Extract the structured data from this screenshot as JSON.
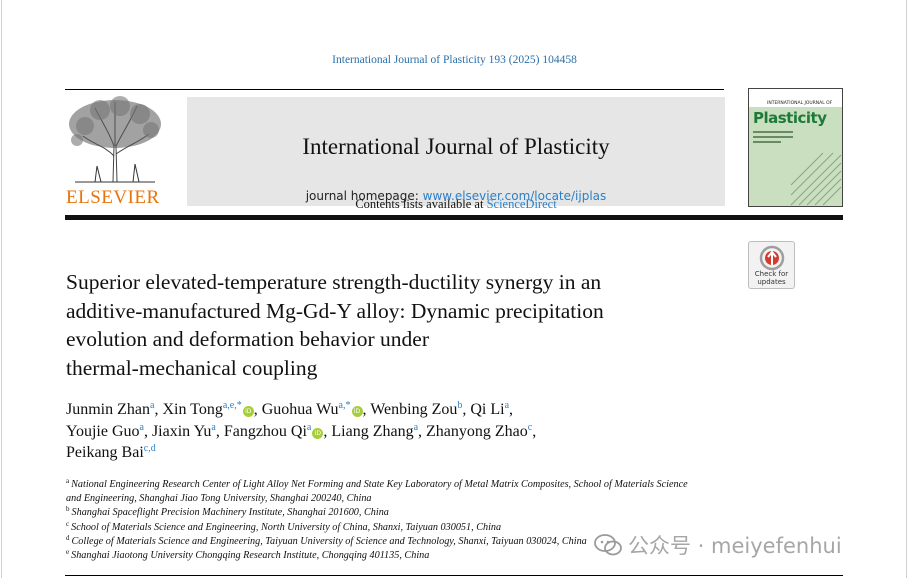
{
  "citation": "International Journal of Plasticity 193 (2025) 104458",
  "publisher": {
    "logo_text": "ELSEVIER"
  },
  "banner": {
    "contents_prefix": "Contents lists available at ",
    "contents_link": "ScienceDirect",
    "journal_title": "International Journal of Plasticity",
    "homepage_prefix": "journal homepage: ",
    "homepage_link": "www.elsevier.com/locate/ijplas"
  },
  "cover": {
    "small_text": "INTERNATIONAL JOURNAL OF",
    "name": "Plasticity"
  },
  "check_updates": {
    "line1": "Check for",
    "line2": "updates"
  },
  "title_lines": [
    "Superior elevated-temperature strength-ductility synergy in an",
    "additive-manufactured Mg-Gd-Y alloy: Dynamic precipitation",
    "evolution and deformation behavior under",
    "thermal-mechanical coupling"
  ],
  "authors": [
    {
      "name": "Junmin Zhan",
      "sup": "a",
      "orcid": false,
      "sep": ", "
    },
    {
      "name": "Xin Tong",
      "sup": "a,e,*",
      "orcid": true,
      "sep": ", "
    },
    {
      "name": "Guohua Wu",
      "sup": "a,*",
      "orcid": true,
      "sep": ", "
    },
    {
      "name": "Wenbing Zou",
      "sup": "b",
      "orcid": false,
      "sep": ", "
    },
    {
      "name": "Qi Li",
      "sup": "a",
      "orcid": false,
      "sep": ","
    },
    {
      "name": "Youjie Guo",
      "sup": "a",
      "orcid": false,
      "sep": ", "
    },
    {
      "name": "Jiaxin Yu",
      "sup": "a",
      "orcid": false,
      "sep": ", "
    },
    {
      "name": "Fangzhou Qi",
      "sup": "a",
      "orcid": true,
      "sep": ", "
    },
    {
      "name": "Liang Zhang",
      "sup": "a",
      "orcid": false,
      "sep": ", "
    },
    {
      "name": "Zhanyong Zhao",
      "sup": "c",
      "orcid": false,
      "sep": ","
    },
    {
      "name": "Peikang Bai",
      "sup": "c,d",
      "orcid": false,
      "sep": ""
    }
  ],
  "affiliations": [
    {
      "label": "a",
      "text": "National Engineering Research Center of Light Alloy Net Forming and State Key Laboratory of Metal Matrix Composites, School of Materials Science"
    },
    {
      "label": "",
      "text": "and Engineering, Shanghai Jiao Tong University, Shanghai 200240, China"
    },
    {
      "label": "b",
      "text": "Shanghai Spaceflight Precision Machinery Institute, Shanghai 201600, China"
    },
    {
      "label": "c",
      "text": "School of Materials Science and Engineering, North University of China, Shanxi, Taiyuan 030051, China"
    },
    {
      "label": "d",
      "text": "College of Materials Science and Engineering, Taiyuan University of Science and Technology, Shanxi, Taiyuan 030024, China"
    },
    {
      "label": "e",
      "text": "Shanghai Jiaotong University Chongqing Research Institute, Chongqing 401135, China"
    }
  ],
  "watermark": "公众号 · meiyefenhui",
  "colors": {
    "link": "#2a80c8",
    "elsevier_orange": "#e8730b",
    "orcid_green": "#a6ce39"
  }
}
